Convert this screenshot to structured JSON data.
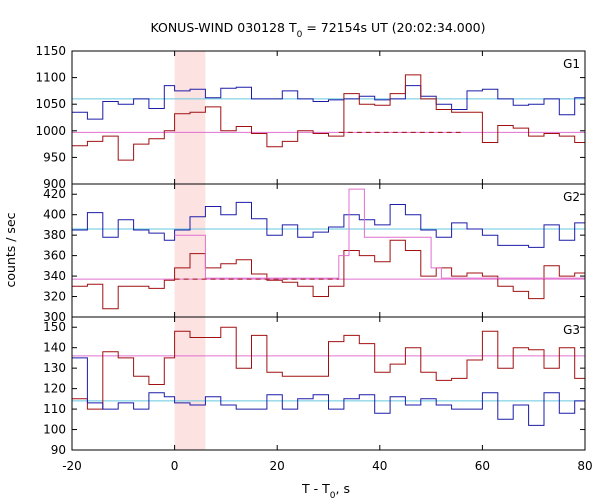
{
  "chart_data": {
    "type": "line",
    "title": {
      "prefix": "KONUS-WIND 030128 T",
      "sub": "0",
      "suffix": " = 72154s UT (20:02:34.000)"
    },
    "ylabel": "counts / sec",
    "xlabel": {
      "prefix": "T - T",
      "sub": "0",
      "suffix": ", s"
    },
    "xlim": [
      -20,
      80
    ],
    "x_ticks": [
      -20,
      0,
      20,
      40,
      60,
      80
    ],
    "x_tick_labels": [
      "-20",
      "0",
      "20",
      "40",
      "60",
      "80"
    ],
    "highlight_interval": [
      0,
      6
    ],
    "colors": {
      "blue": "#1c1ca8",
      "red": "#a01010",
      "cyan": "#66c8e0",
      "pink": "#e070d0",
      "highlight": "#fde2e2"
    },
    "panels": [
      {
        "label": "G1",
        "ylim": [
          900,
          1150
        ],
        "y_ticks": [
          900,
          950,
          1000,
          1050,
          1100,
          1150
        ],
        "background_levels": [
          {
            "name": "background-blue",
            "color": "cyan",
            "value": 1060,
            "from": -20,
            "to": 80,
            "dashed": false
          },
          {
            "name": "background-red",
            "color": "pink",
            "value": 997,
            "from": -20,
            "to": 80,
            "dashed": false
          },
          {
            "name": "background-red-dashed",
            "color": "red",
            "value": 997,
            "from": 32,
            "to": 56,
            "dashed": true
          }
        ],
        "series": [
          {
            "color": "blue",
            "bin_edges": [
              -20,
              -17,
              -14,
              -11,
              -8,
              -5,
              -2,
              0,
              3,
              6,
              9,
              12,
              15,
              18,
              21,
              24,
              27,
              30,
              33,
              36,
              39,
              42,
              45,
              48,
              51,
              54,
              57,
              60,
              63,
              66,
              69,
              72,
              75,
              78,
              80
            ],
            "values": [
              1035,
              1022,
              1055,
              1050,
              1060,
              1042,
              1085,
              1075,
              1078,
              1062,
              1080,
              1082,
              1060,
              1060,
              1075,
              1060,
              1055,
              1058,
              1060,
              1065,
              1058,
              1060,
              1085,
              1065,
              1050,
              1040,
              1075,
              1078,
              1060,
              1048,
              1050,
              1060,
              1030,
              1062
            ]
          },
          {
            "color": "red",
            "bin_edges": [
              -20,
              -17,
              -14,
              -11,
              -8,
              -5,
              -2,
              0,
              3,
              6,
              9,
              12,
              15,
              18,
              21,
              24,
              27,
              30,
              33,
              36,
              39,
              42,
              45,
              48,
              51,
              54,
              57,
              60,
              63,
              66,
              69,
              72,
              75,
              78,
              80
            ],
            "values": [
              972,
              980,
              990,
              945,
              975,
              985,
              1000,
              1032,
              1035,
              1045,
              1000,
              1008,
              995,
              970,
              980,
              1000,
              995,
              990,
              1070,
              1050,
              1048,
              1070,
              1105,
              1060,
              1040,
              1035,
              1035,
              978,
              1010,
              1005,
              990,
              995,
              990,
              978
            ]
          }
        ]
      },
      {
        "label": "G2",
        "ylim": [
          300,
          430
        ],
        "y_ticks": [
          300,
          320,
          340,
          360,
          380,
          400,
          420
        ],
        "background_levels": [
          {
            "name": "background-blue",
            "color": "cyan",
            "value": 386,
            "from": -20,
            "to": 80,
            "dashed": false
          },
          {
            "name": "background-red",
            "color": "pink",
            "value": 337,
            "from": -20,
            "to": 80,
            "dashed": false
          },
          {
            "name": "background-red-dashed",
            "color": "red",
            "value": 337,
            "from": 0,
            "to": 32,
            "dashed": true
          }
        ],
        "series": [
          {
            "color": "blue",
            "bin_edges": [
              -20,
              -17,
              -14,
              -11,
              -8,
              -5,
              -2,
              0,
              3,
              6,
              9,
              12,
              15,
              18,
              21,
              24,
              27,
              30,
              33,
              36,
              39,
              42,
              45,
              48,
              51,
              54,
              57,
              60,
              63,
              66,
              69,
              72,
              75,
              78,
              80
            ],
            "values": [
              385,
              402,
              378,
              395,
              385,
              382,
              375,
              385,
              398,
              408,
              400,
              412,
              396,
              380,
              390,
              378,
              383,
              388,
              400,
              395,
              390,
              410,
              400,
              385,
              378,
              392,
              386,
              380,
              370,
              370,
              368,
              390,
              375,
              392
            ]
          },
          {
            "color": "red",
            "bin_edges": [
              -20,
              -17,
              -14,
              -11,
              -8,
              -5,
              -2,
              0,
              3,
              6,
              9,
              12,
              15,
              18,
              21,
              24,
              27,
              30,
              33,
              36,
              39,
              42,
              45,
              48,
              51,
              54,
              57,
              60,
              63,
              66,
              69,
              72,
              75,
              78,
              80
            ],
            "values": [
              330,
              332,
              308,
              330,
              330,
              328,
              336,
              348,
              362,
              348,
              352,
              356,
              342,
              336,
              334,
              330,
              320,
              330,
              365,
              360,
              354,
              375,
              365,
              340,
              348,
              340,
              343,
              340,
              330,
              325,
              318,
              350,
              340,
              343
            ]
          },
          {
            "color": "pink",
            "bin_edges": [
              0,
              6,
              32,
              34,
              37,
              50,
              52,
              80
            ],
            "values": [
              380,
              338,
              360,
              425,
              378,
              348,
              338
            ],
            "pulse_only": true
          }
        ]
      },
      {
        "label": "G3",
        "ylim": [
          90,
          155
        ],
        "y_ticks": [
          90,
          100,
          110,
          120,
          130,
          140,
          150
        ],
        "background_levels": [
          {
            "name": "background-red",
            "color": "pink",
            "value": 136,
            "from": -20,
            "to": 80,
            "dashed": false
          },
          {
            "name": "background-blue",
            "color": "cyan",
            "value": 114,
            "from": -20,
            "to": 80,
            "dashed": false
          }
        ],
        "series": [
          {
            "color": "red",
            "bin_edges": [
              -20,
              -17,
              -14,
              -11,
              -8,
              -5,
              -2,
              0,
              3,
              6,
              9,
              12,
              15,
              18,
              21,
              24,
              27,
              30,
              33,
              36,
              39,
              42,
              45,
              48,
              51,
              54,
              57,
              60,
              63,
              66,
              69,
              72,
              75,
              78,
              80
            ],
            "values": [
              115,
              110,
              138,
              135,
              126,
              122,
              135,
              148,
              145,
              145,
              150,
              130,
              146,
              128,
              126,
              126,
              126,
              143,
              146,
              142,
              128,
              132,
              140,
              128,
              124,
              125,
              134,
              148,
              130,
              140,
              139,
              130,
              140,
              125
            ]
          },
          {
            "color": "blue",
            "bin_edges": [
              -20,
              -17,
              -14,
              -11,
              -8,
              -5,
              -2,
              0,
              3,
              6,
              9,
              12,
              15,
              18,
              21,
              24,
              27,
              30,
              33,
              36,
              39,
              42,
              45,
              48,
              51,
              54,
              57,
              60,
              63,
              66,
              69,
              72,
              75,
              78,
              80
            ],
            "values": [
              135,
              113,
              110,
              113,
              110,
              118,
              116,
              113,
              112,
              116,
              112,
              110,
              110,
              117,
              110,
              115,
              117,
              110,
              115,
              117,
              108,
              116,
              112,
              115,
              112,
              110,
              110,
              118,
              105,
              112,
              102,
              118,
              108,
              114
            ]
          }
        ]
      }
    ]
  }
}
